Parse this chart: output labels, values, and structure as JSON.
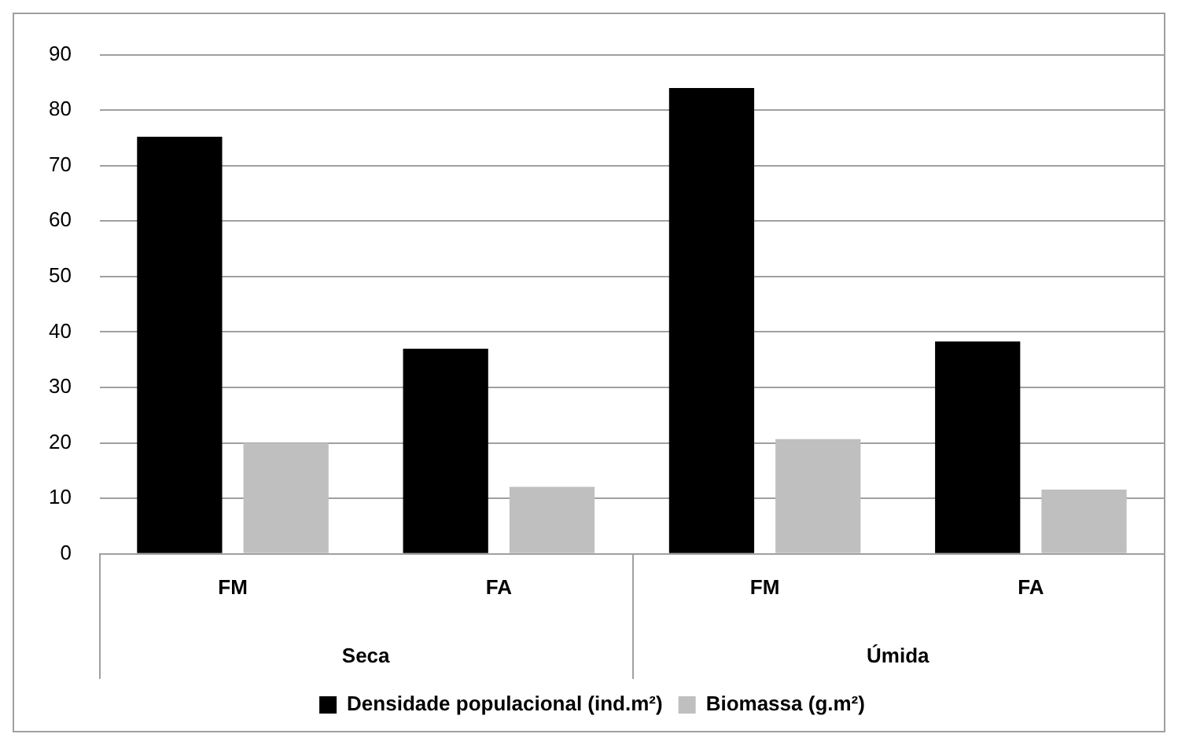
{
  "chart_data": {
    "type": "bar",
    "categories": [
      "FM",
      "FA",
      "FM",
      "FA"
    ],
    "series": [
      {
        "name": "Densidade populacional (ind.m²)",
        "color": "#000000",
        "values": [
          75.2,
          37.0,
          84.0,
          38.3
        ]
      },
      {
        "name": "Biomassa (g.m²)",
        "color": "#bfbfbf",
        "values": [
          20.0,
          12.1,
          20.7,
          11.6
        ]
      }
    ],
    "annotations": [
      "Seca",
      "Úmida"
    ],
    "ylim": [
      0,
      90
    ],
    "yticks": [
      0,
      10,
      20,
      30,
      40,
      50,
      60,
      70,
      80,
      90
    ],
    "grid": "y",
    "legend": "bottom"
  }
}
